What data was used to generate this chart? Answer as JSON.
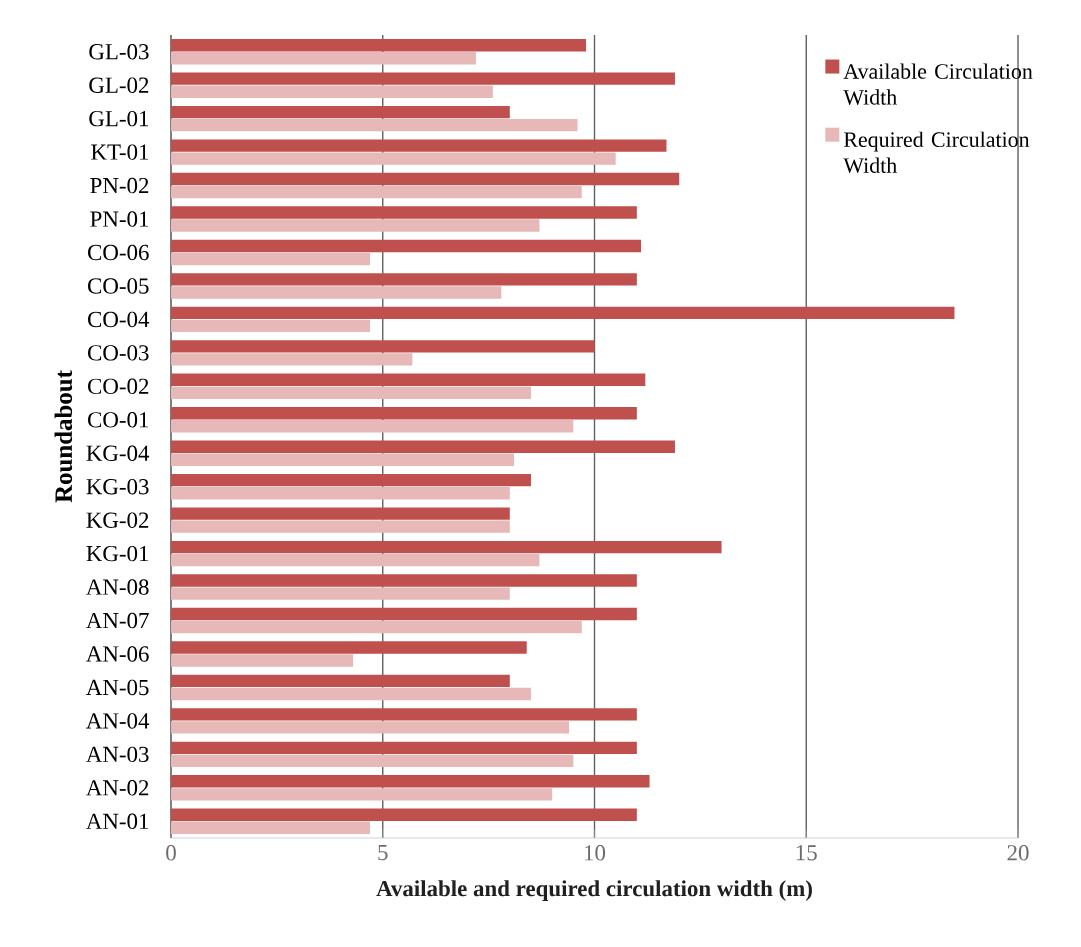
{
  "chart_data": {
    "type": "bar",
    "orientation": "horizontal",
    "xlabel": "Available and required circulation width (m)",
    "ylabel": "Roundabout",
    "categories": [
      "GL-03",
      "GL-02",
      "GL-01",
      "KT-01",
      "PN-02",
      "PN-01",
      "CO-06",
      "CO-05",
      "CO-04",
      "CO-03",
      "CO-02",
      "CO-01",
      "KG-04",
      "KG-03",
      "KG-02",
      "KG-01",
      "AN-08",
      "AN-07",
      "AN-06",
      "AN-05",
      "AN-04",
      "AN-03",
      "AN-02",
      "AN-01"
    ],
    "xlim": [
      0,
      20
    ],
    "xticks": [
      0,
      5,
      10,
      15,
      20
    ],
    "grid": "x",
    "legend": "top right",
    "series": [
      {
        "name": "Available Circulation Width",
        "color": "#c0504d",
        "values": [
          9.8,
          11.9,
          8.0,
          11.7,
          12.0,
          11.0,
          11.1,
          11.0,
          18.5,
          10.0,
          11.2,
          11.0,
          11.9,
          8.5,
          8.0,
          13.0,
          11.0,
          11.0,
          8.4,
          8.0,
          11.0,
          11.0,
          11.3,
          11.0
        ]
      },
      {
        "name": "Required Circulation Width",
        "color": "#e6b9b8",
        "values": [
          7.2,
          7.6,
          9.6,
          10.5,
          9.7,
          8.7,
          4.7,
          7.8,
          4.7,
          5.7,
          8.5,
          9.5,
          8.1,
          8.0,
          8.0,
          8.7,
          8.0,
          9.7,
          4.3,
          8.5,
          9.4,
          9.5,
          9.0,
          4.7
        ]
      }
    ]
  }
}
